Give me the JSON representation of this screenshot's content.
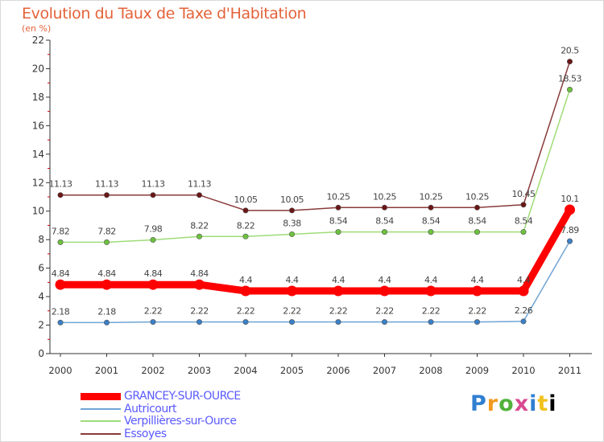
{
  "title": "Evolution du Taux de Taxe d'Habitation",
  "unit": "(en %)",
  "logo": {
    "text": "Proxiti",
    "letters": [
      "P",
      "r",
      "o",
      "x",
      "i",
      "t",
      "i"
    ]
  },
  "chart_data": {
    "type": "line",
    "title": "Evolution du Taux de Taxe d'Habitation",
    "ylabel": "(en %)",
    "xlabel": "",
    "ylim": [
      0,
      22
    ],
    "yticks": [
      0,
      2,
      4,
      6,
      8,
      10,
      12,
      14,
      16,
      18,
      20,
      22
    ],
    "grid": false,
    "legend": "bottom-left",
    "x": [
      2000,
      2001,
      2002,
      2003,
      2004,
      2005,
      2006,
      2007,
      2008,
      2009,
      2010,
      2011
    ],
    "series": [
      {
        "name": "GRANCEY-SUR-OURCE",
        "color": "#ff0000",
        "values": [
          4.84,
          4.84,
          4.84,
          4.84,
          4.4,
          4.4,
          4.4,
          4.4,
          4.4,
          4.4,
          4.4,
          10.1
        ],
        "labels": [
          "4.84",
          "4.84",
          "4.84",
          "4.84",
          "4.4",
          "4.4",
          "4.4",
          "4.4",
          "4.4",
          "4.4",
          "4.4",
          "10.1"
        ]
      },
      {
        "name": "Autricourt",
        "color": "#6fa5d5",
        "marker": "#3a80c8",
        "values": [
          2.18,
          2.18,
          2.22,
          2.22,
          2.22,
          2.22,
          2.22,
          2.22,
          2.22,
          2.22,
          2.26,
          7.89
        ],
        "labels": [
          "2.18",
          "2.18",
          "2.22",
          "2.22",
          "2.22",
          "2.22",
          "2.22",
          "2.22",
          "2.22",
          "2.22",
          "2.26",
          "7.89"
        ]
      },
      {
        "name": "Verpillières-sur-Ource",
        "color": "#9fdc78",
        "marker": "#6cc23d",
        "values": [
          7.82,
          7.82,
          7.98,
          8.22,
          8.22,
          8.38,
          8.54,
          8.54,
          8.54,
          8.54,
          8.54,
          18.53
        ],
        "labels": [
          "7.82",
          "7.82",
          "7.98",
          "8.22",
          "8.22",
          "8.38",
          "8.54",
          "8.54",
          "8.54",
          "8.54",
          "8.54",
          "18.53"
        ]
      },
      {
        "name": "Essoyes",
        "color": "#8a3a3a",
        "marker": "#6b1616",
        "values": [
          11.13,
          11.13,
          11.13,
          11.13,
          10.05,
          10.05,
          10.25,
          10.25,
          10.25,
          10.25,
          10.45,
          20.5
        ],
        "labels": [
          "11.13",
          "11.13",
          "11.13",
          "11.13",
          "10.05",
          "10.05",
          "10.25",
          "10.25",
          "10.25",
          "10.25",
          "10.45",
          "20.5"
        ]
      }
    ]
  }
}
